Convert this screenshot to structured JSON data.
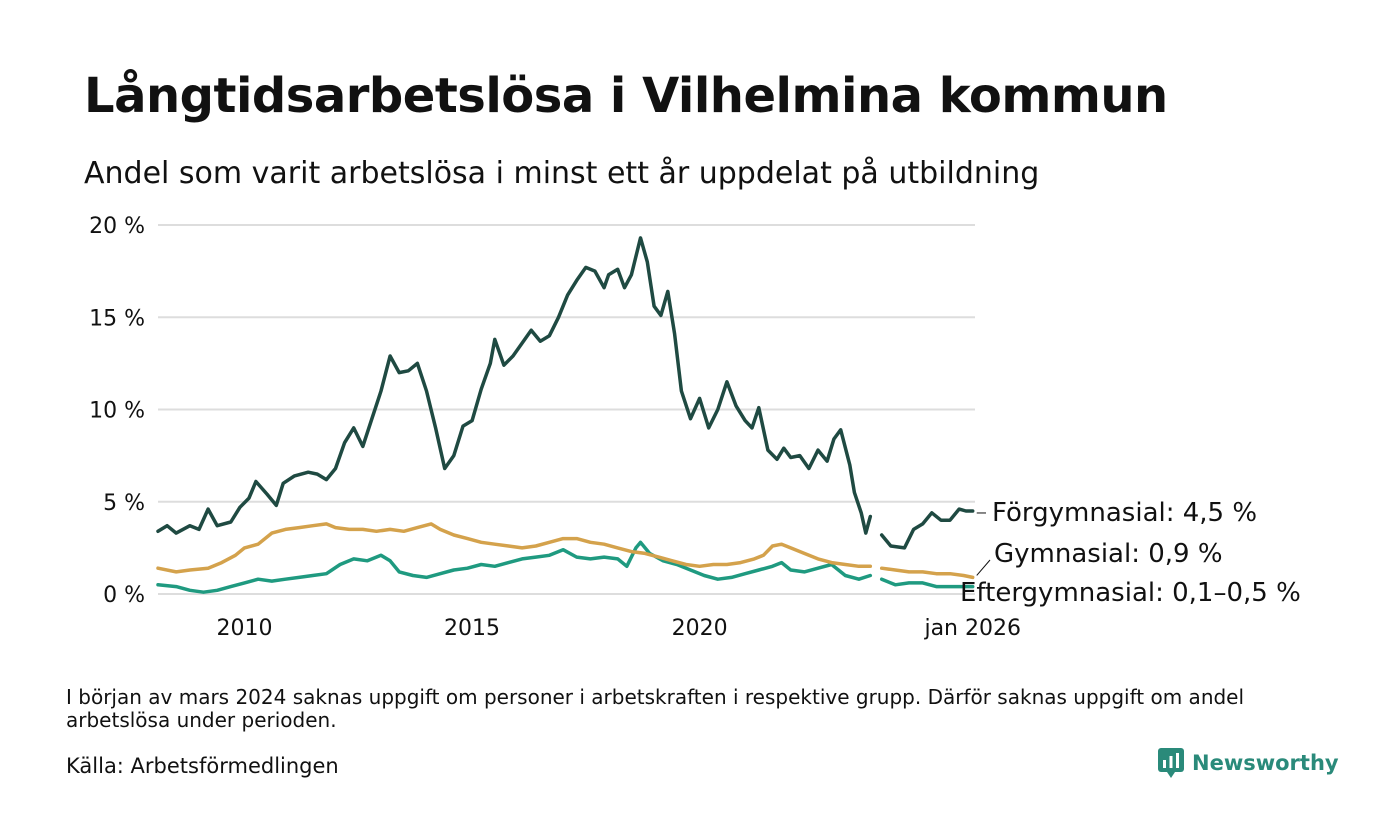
{
  "title": "Långtidsarbetslösa i Vilhelmina kommun",
  "subtitle": "Andel som varit arbetslösa i minst ett år uppdelat på utbildning",
  "note": "I början av mars 2024 saknas uppgift om personer i arbetskraften i respektive grupp. Därför saknas uppgift om andel arbetslösa under perioden.",
  "source": "Källa: Arbetsförmedlingen",
  "brand": "Newsworthy",
  "colors": {
    "forgymnasial": "#1f4a42",
    "gymnasial": "#d4a24c",
    "eftergymnasial": "#1f9a80",
    "grid": "#dddddd",
    "brand": "#2a8a7a"
  },
  "chart_data": {
    "type": "line",
    "title": "Långtidsarbetslösa i Vilhelmina kommun",
    "subtitle": "Andel som varit arbetslösa i minst ett år uppdelat på utbildning",
    "xlabel": "",
    "ylabel": "",
    "xlim": [
      2008.1,
      2026.05
    ],
    "ylim": [
      0,
      20
    ],
    "y_ticks": [
      0,
      5,
      10,
      15,
      20
    ],
    "y_tick_labels": [
      "0 %",
      "5 %",
      "10 %",
      "15 %",
      "20 %"
    ],
    "x_ticks": [
      2010,
      2015,
      2020,
      2026.0
    ],
    "x_tick_labels": [
      "2010",
      "2015",
      "2020",
      "jan 2026"
    ],
    "gap": [
      2023.75,
      2024.0
    ],
    "grid": true,
    "series": [
      {
        "name": "Förgymnasial",
        "label": "Förgymnasial: 4,5 %",
        "color": "#1f4a42",
        "points": [
          [
            2008.1,
            3.4
          ],
          [
            2008.3,
            3.7
          ],
          [
            2008.5,
            3.3
          ],
          [
            2008.8,
            3.7
          ],
          [
            2009.0,
            3.5
          ],
          [
            2009.2,
            4.6
          ],
          [
            2009.4,
            3.7
          ],
          [
            2009.7,
            3.9
          ],
          [
            2009.9,
            4.7
          ],
          [
            2010.1,
            5.2
          ],
          [
            2010.25,
            6.1
          ],
          [
            2010.5,
            5.4
          ],
          [
            2010.7,
            4.8
          ],
          [
            2010.85,
            6.0
          ],
          [
            2011.1,
            6.4
          ],
          [
            2011.4,
            6.6
          ],
          [
            2011.6,
            6.5
          ],
          [
            2011.8,
            6.2
          ],
          [
            2012.0,
            6.8
          ],
          [
            2012.2,
            8.2
          ],
          [
            2012.4,
            9.0
          ],
          [
            2012.6,
            8.0
          ],
          [
            2012.8,
            9.5
          ],
          [
            2013.0,
            11.0
          ],
          [
            2013.2,
            12.9
          ],
          [
            2013.4,
            12.0
          ],
          [
            2013.6,
            12.1
          ],
          [
            2013.8,
            12.5
          ],
          [
            2014.0,
            11.0
          ],
          [
            2014.2,
            9.0
          ],
          [
            2014.4,
            6.8
          ],
          [
            2014.6,
            7.5
          ],
          [
            2014.8,
            9.1
          ],
          [
            2015.0,
            9.4
          ],
          [
            2015.2,
            11.1
          ],
          [
            2015.4,
            12.5
          ],
          [
            2015.5,
            13.8
          ],
          [
            2015.7,
            12.4
          ],
          [
            2015.9,
            12.9
          ],
          [
            2016.1,
            13.6
          ],
          [
            2016.3,
            14.3
          ],
          [
            2016.5,
            13.7
          ],
          [
            2016.7,
            14.0
          ],
          [
            2016.9,
            15.0
          ],
          [
            2017.1,
            16.2
          ],
          [
            2017.3,
            17.0
          ],
          [
            2017.5,
            17.7
          ],
          [
            2017.7,
            17.5
          ],
          [
            2017.9,
            16.6
          ],
          [
            2018.0,
            17.3
          ],
          [
            2018.2,
            17.6
          ],
          [
            2018.35,
            16.6
          ],
          [
            2018.5,
            17.3
          ],
          [
            2018.7,
            19.3
          ],
          [
            2018.85,
            18.0
          ],
          [
            2019.0,
            15.6
          ],
          [
            2019.15,
            15.1
          ],
          [
            2019.3,
            16.4
          ],
          [
            2019.45,
            14.1
          ],
          [
            2019.6,
            11.0
          ],
          [
            2019.8,
            9.5
          ],
          [
            2020.0,
            10.6
          ],
          [
            2020.2,
            9.0
          ],
          [
            2020.4,
            10.0
          ],
          [
            2020.6,
            11.5
          ],
          [
            2020.8,
            10.2
          ],
          [
            2021.0,
            9.4
          ],
          [
            2021.15,
            9.0
          ],
          [
            2021.3,
            10.1
          ],
          [
            2021.5,
            7.8
          ],
          [
            2021.7,
            7.3
          ],
          [
            2021.85,
            7.9
          ],
          [
            2022.0,
            7.4
          ],
          [
            2022.2,
            7.5
          ],
          [
            2022.4,
            6.8
          ],
          [
            2022.6,
            7.8
          ],
          [
            2022.8,
            7.2
          ],
          [
            2022.95,
            8.4
          ],
          [
            2023.1,
            8.9
          ],
          [
            2023.3,
            7.0
          ],
          [
            2023.4,
            5.5
          ],
          [
            2023.55,
            4.4
          ],
          [
            2023.65,
            3.3
          ],
          [
            2023.75,
            4.2
          ],
          [
            2024.0,
            3.2
          ],
          [
            2024.2,
            2.6
          ],
          [
            2024.5,
            2.5
          ],
          [
            2024.7,
            3.5
          ],
          [
            2024.9,
            3.8
          ],
          [
            2025.1,
            4.4
          ],
          [
            2025.3,
            4.0
          ],
          [
            2025.5,
            4.0
          ],
          [
            2025.7,
            4.6
          ],
          [
            2025.85,
            4.5
          ],
          [
            2026.0,
            4.5
          ]
        ]
      },
      {
        "name": "Gymnasial",
        "label": "Gymnasial: 0,9 %",
        "color": "#d4a24c",
        "points": [
          [
            2008.1,
            1.4
          ],
          [
            2008.5,
            1.2
          ],
          [
            2008.8,
            1.3
          ],
          [
            2009.2,
            1.4
          ],
          [
            2009.5,
            1.7
          ],
          [
            2009.8,
            2.1
          ],
          [
            2010.0,
            2.5
          ],
          [
            2010.3,
            2.7
          ],
          [
            2010.6,
            3.3
          ],
          [
            2010.9,
            3.5
          ],
          [
            2011.2,
            3.6
          ],
          [
            2011.5,
            3.7
          ],
          [
            2011.8,
            3.8
          ],
          [
            2012.0,
            3.6
          ],
          [
            2012.3,
            3.5
          ],
          [
            2012.6,
            3.5
          ],
          [
            2012.9,
            3.4
          ],
          [
            2013.2,
            3.5
          ],
          [
            2013.5,
            3.4
          ],
          [
            2013.8,
            3.6
          ],
          [
            2014.1,
            3.8
          ],
          [
            2014.3,
            3.5
          ],
          [
            2014.6,
            3.2
          ],
          [
            2014.9,
            3.0
          ],
          [
            2015.2,
            2.8
          ],
          [
            2015.5,
            2.7
          ],
          [
            2015.8,
            2.6
          ],
          [
            2016.1,
            2.5
          ],
          [
            2016.4,
            2.6
          ],
          [
            2016.7,
            2.8
          ],
          [
            2017.0,
            3.0
          ],
          [
            2017.3,
            3.0
          ],
          [
            2017.6,
            2.8
          ],
          [
            2017.9,
            2.7
          ],
          [
            2018.2,
            2.5
          ],
          [
            2018.5,
            2.3
          ],
          [
            2018.8,
            2.2
          ],
          [
            2019.1,
            2.0
          ],
          [
            2019.4,
            1.8
          ],
          [
            2019.7,
            1.6
          ],
          [
            2020.0,
            1.5
          ],
          [
            2020.3,
            1.6
          ],
          [
            2020.6,
            1.6
          ],
          [
            2020.9,
            1.7
          ],
          [
            2021.2,
            1.9
          ],
          [
            2021.4,
            2.1
          ],
          [
            2021.6,
            2.6
          ],
          [
            2021.8,
            2.7
          ],
          [
            2022.0,
            2.5
          ],
          [
            2022.3,
            2.2
          ],
          [
            2022.6,
            1.9
          ],
          [
            2022.9,
            1.7
          ],
          [
            2023.2,
            1.6
          ],
          [
            2023.5,
            1.5
          ],
          [
            2023.75,
            1.5
          ],
          [
            2024.0,
            1.4
          ],
          [
            2024.3,
            1.3
          ],
          [
            2024.6,
            1.2
          ],
          [
            2024.9,
            1.2
          ],
          [
            2025.2,
            1.1
          ],
          [
            2025.5,
            1.1
          ],
          [
            2025.8,
            1.0
          ],
          [
            2026.0,
            0.9
          ]
        ]
      },
      {
        "name": "Eftergymnasial",
        "label": "Eftergymnasial: 0,1–0,5 %",
        "color": "#1f9a80",
        "points": [
          [
            2008.1,
            0.5
          ],
          [
            2008.5,
            0.4
          ],
          [
            2008.8,
            0.2
          ],
          [
            2009.1,
            0.1
          ],
          [
            2009.4,
            0.2
          ],
          [
            2009.7,
            0.4
          ],
          [
            2010.0,
            0.6
          ],
          [
            2010.3,
            0.8
          ],
          [
            2010.6,
            0.7
          ],
          [
            2010.9,
            0.8
          ],
          [
            2011.2,
            0.9
          ],
          [
            2011.5,
            1.0
          ],
          [
            2011.8,
            1.1
          ],
          [
            2012.1,
            1.6
          ],
          [
            2012.4,
            1.9
          ],
          [
            2012.7,
            1.8
          ],
          [
            2013.0,
            2.1
          ],
          [
            2013.2,
            1.8
          ],
          [
            2013.4,
            1.2
          ],
          [
            2013.7,
            1.0
          ],
          [
            2014.0,
            0.9
          ],
          [
            2014.3,
            1.1
          ],
          [
            2014.6,
            1.3
          ],
          [
            2014.9,
            1.4
          ],
          [
            2015.2,
            1.6
          ],
          [
            2015.5,
            1.5
          ],
          [
            2015.8,
            1.7
          ],
          [
            2016.1,
            1.9
          ],
          [
            2016.4,
            2.0
          ],
          [
            2016.7,
            2.1
          ],
          [
            2017.0,
            2.4
          ],
          [
            2017.3,
            2.0
          ],
          [
            2017.6,
            1.9
          ],
          [
            2017.9,
            2.0
          ],
          [
            2018.2,
            1.9
          ],
          [
            2018.4,
            1.5
          ],
          [
            2018.6,
            2.5
          ],
          [
            2018.7,
            2.8
          ],
          [
            2018.9,
            2.2
          ],
          [
            2019.2,
            1.8
          ],
          [
            2019.5,
            1.6
          ],
          [
            2019.8,
            1.3
          ],
          [
            2020.1,
            1.0
          ],
          [
            2020.4,
            0.8
          ],
          [
            2020.7,
            0.9
          ],
          [
            2021.0,
            1.1
          ],
          [
            2021.3,
            1.3
          ],
          [
            2021.6,
            1.5
          ],
          [
            2021.8,
            1.7
          ],
          [
            2022.0,
            1.3
          ],
          [
            2022.3,
            1.2
          ],
          [
            2022.6,
            1.4
          ],
          [
            2022.9,
            1.6
          ],
          [
            2023.2,
            1.0
          ],
          [
            2023.5,
            0.8
          ],
          [
            2023.75,
            1.0
          ],
          [
            2024.0,
            0.8
          ],
          [
            2024.3,
            0.5
          ],
          [
            2024.6,
            0.6
          ],
          [
            2024.9,
            0.6
          ],
          [
            2025.2,
            0.4
          ],
          [
            2025.5,
            0.4
          ],
          [
            2025.8,
            0.4
          ],
          [
            2026.0,
            0.4
          ]
        ]
      }
    ]
  }
}
